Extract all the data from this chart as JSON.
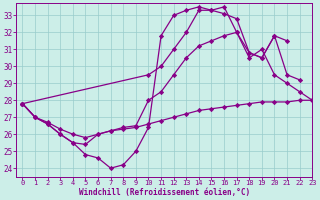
{
  "bg_color": "#cceee8",
  "line_color": "#880088",
  "grid_color": "#99cccc",
  "xlabel": "Windchill (Refroidissement éolien,°C)",
  "xlim": [
    -0.5,
    23
  ],
  "ylim": [
    23.5,
    33.7
  ],
  "yticks": [
    24,
    25,
    26,
    27,
    28,
    29,
    30,
    31,
    32,
    33
  ],
  "xticks": [
    0,
    1,
    2,
    3,
    4,
    5,
    6,
    7,
    8,
    9,
    10,
    11,
    12,
    13,
    14,
    15,
    16,
    17,
    18,
    19,
    20,
    21,
    22,
    23
  ],
  "series": [
    {
      "x": [
        0,
        1,
        2,
        3,
        4,
        5,
        6,
        7,
        8,
        9,
        10,
        11,
        12,
        13,
        14,
        15,
        16,
        17,
        18,
        19,
        20,
        21,
        22,
        23
      ],
      "y": [
        27.8,
        27.0,
        26.7,
        26.3,
        26.0,
        25.8,
        26.0,
        26.2,
        26.3,
        26.4,
        26.6,
        26.8,
        27.0,
        27.2,
        27.4,
        27.5,
        27.6,
        27.7,
        27.8,
        27.9,
        27.9,
        27.9,
        28.0,
        28.0
      ]
    },
    {
      "x": [
        0,
        1,
        2,
        3,
        4,
        5,
        6,
        7,
        8,
        9,
        10,
        11,
        12,
        13,
        14,
        15,
        16,
        17,
        18,
        19,
        20,
        21,
        22,
        23
      ],
      "y": [
        27.8,
        27.0,
        26.6,
        26.0,
        25.5,
        25.4,
        26.0,
        26.2,
        26.4,
        26.5,
        28.0,
        28.5,
        29.5,
        30.5,
        31.2,
        31.5,
        31.8,
        32.0,
        30.5,
        31.0,
        29.5,
        29.0,
        28.5,
        28.0
      ]
    },
    {
      "x": [
        0,
        1,
        2,
        3,
        4,
        5,
        6,
        7,
        8,
        9,
        10,
        11,
        12,
        13,
        14,
        15,
        16,
        17,
        18,
        19,
        20,
        21,
        22
      ],
      "y": [
        27.8,
        27.0,
        26.6,
        26.0,
        25.5,
        24.8,
        24.6,
        24.0,
        24.2,
        25.0,
        26.4,
        31.8,
        33.0,
        33.3,
        33.5,
        33.3,
        33.1,
        32.8,
        30.8,
        30.5,
        31.8,
        31.5,
        null
      ]
    },
    {
      "x": [
        0,
        10,
        11,
        12,
        13,
        14,
        15,
        16,
        17,
        18,
        19,
        20,
        21,
        22
      ],
      "y": [
        27.8,
        29.5,
        30.0,
        31.0,
        32.0,
        33.3,
        33.3,
        33.5,
        32.0,
        30.8,
        30.5,
        31.8,
        29.5,
        29.2
      ]
    }
  ]
}
